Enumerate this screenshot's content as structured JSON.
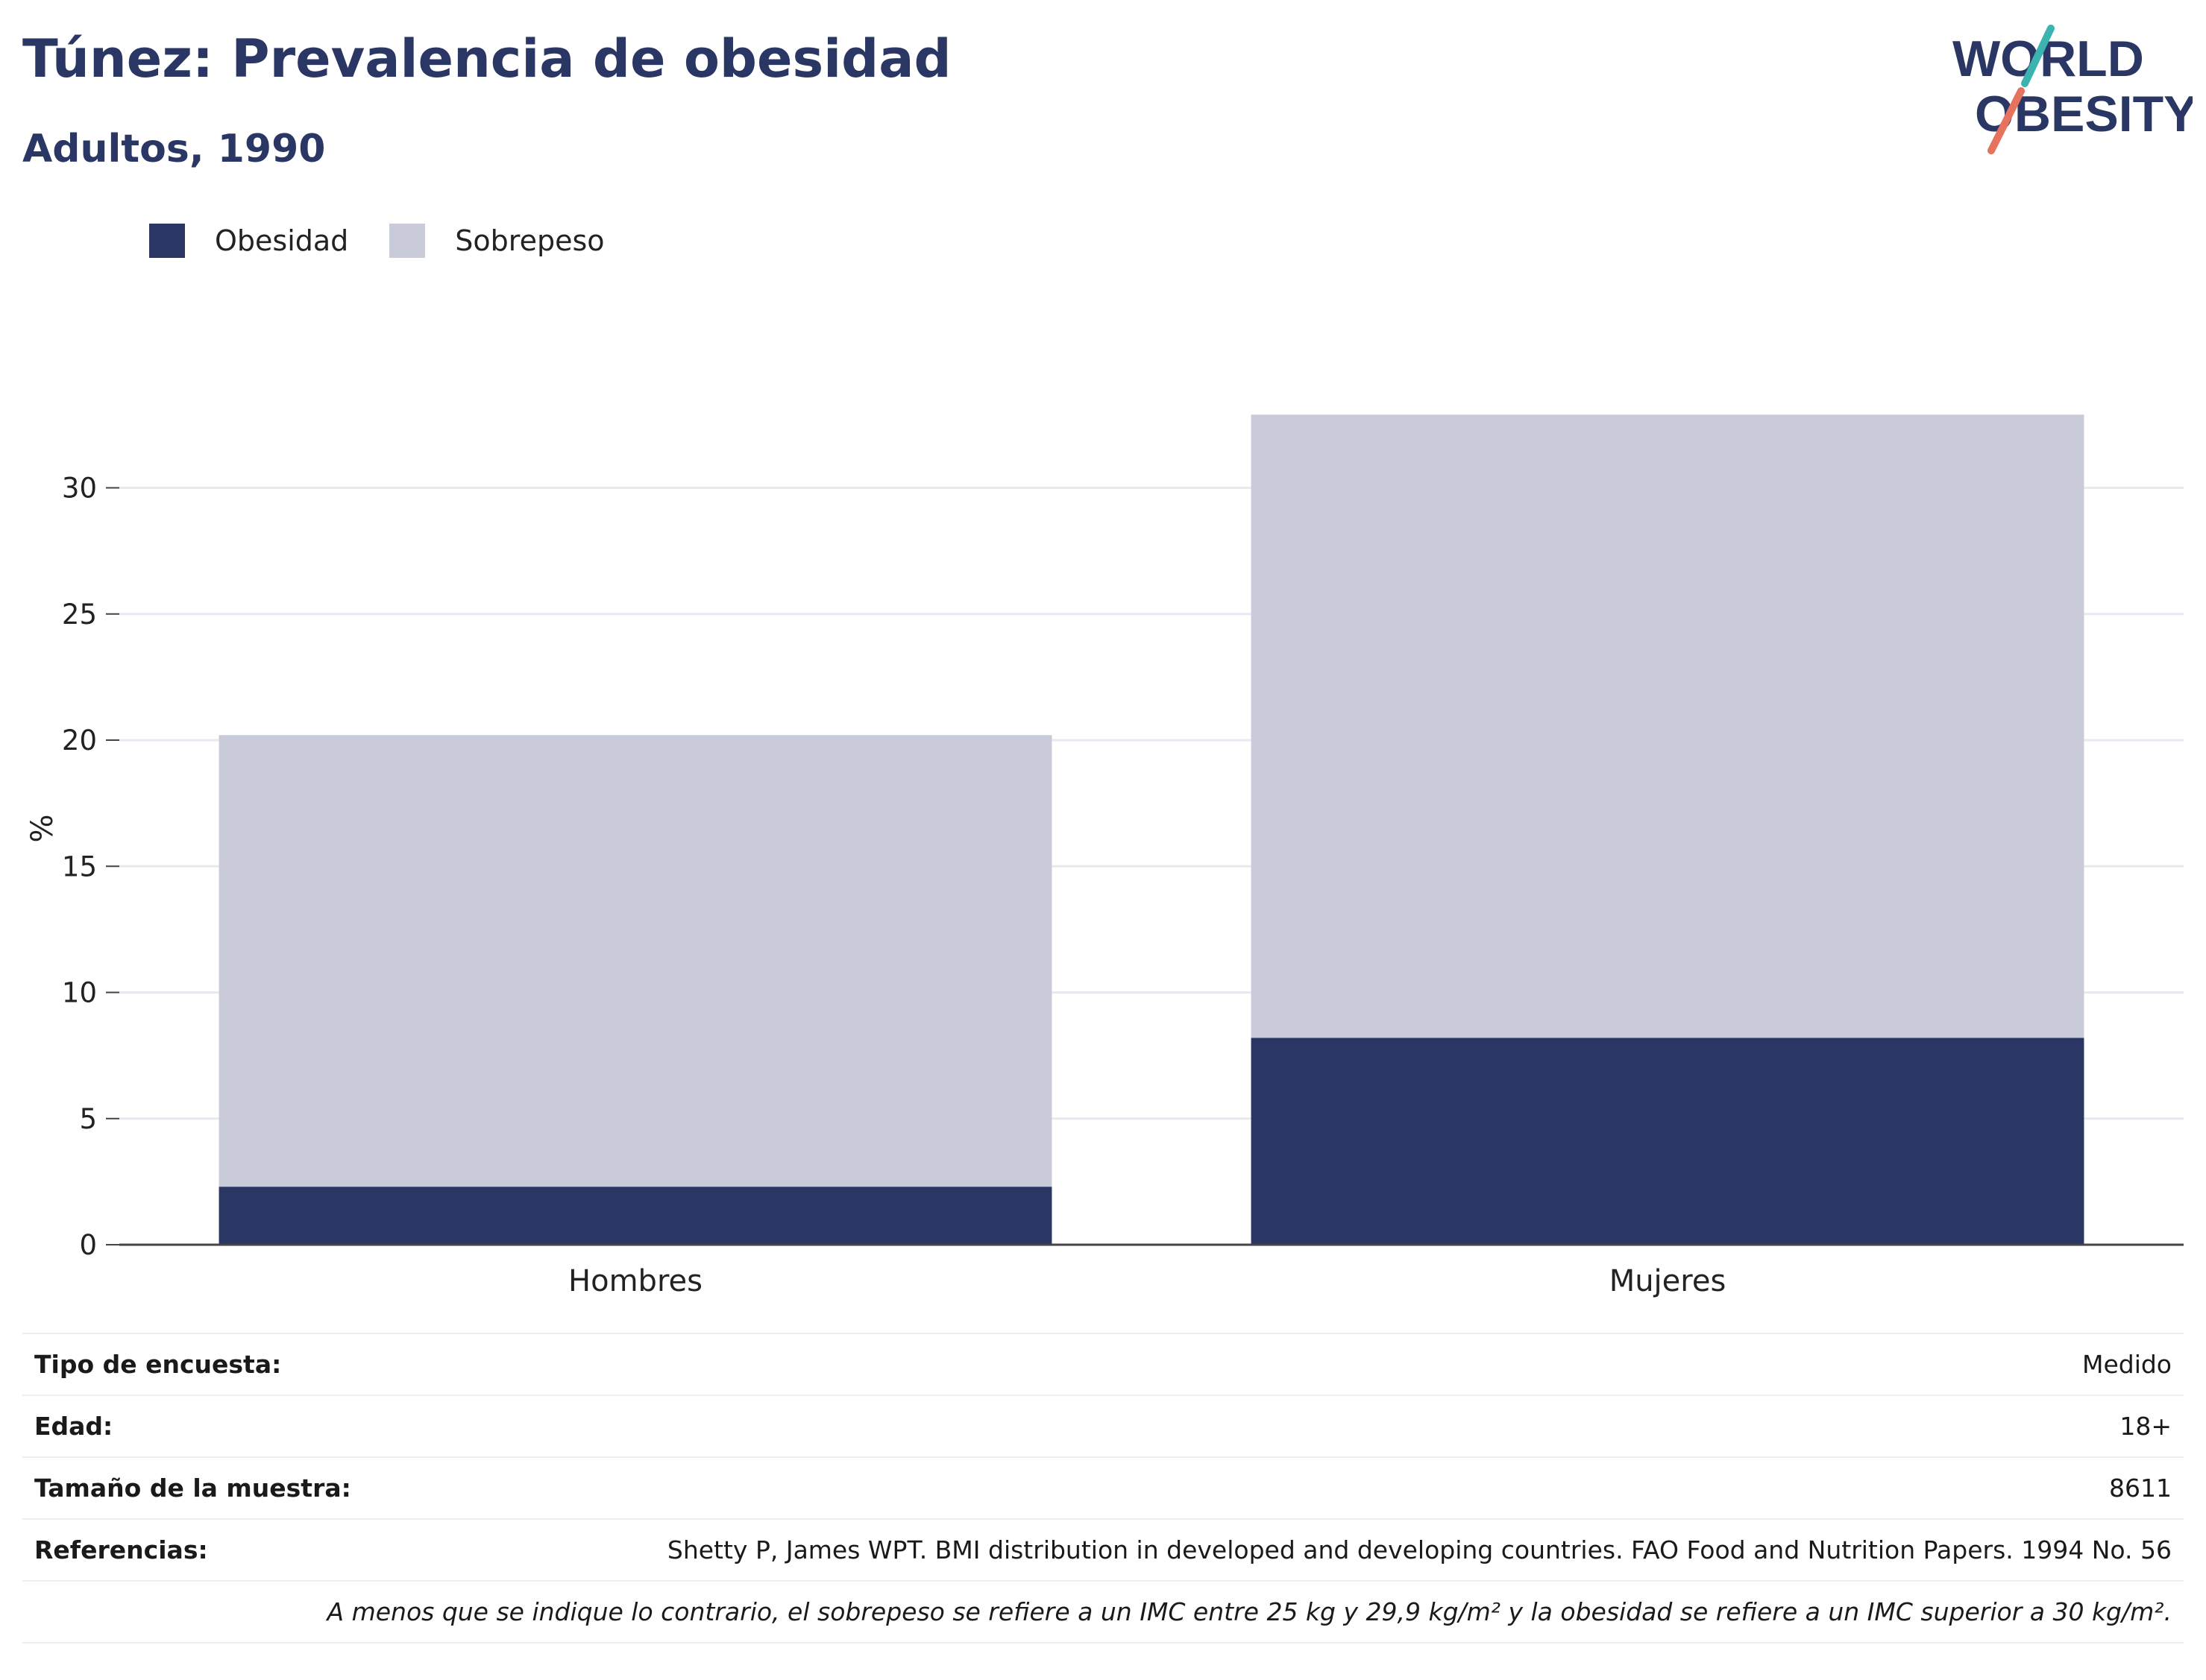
{
  "header": {
    "title": "Túnez: Prevalencia de obesidad",
    "subtitle": "Adultos, 1990"
  },
  "logo": {
    "line1": "WORLD",
    "line2": "OBESITY"
  },
  "colors": {
    "obesity": "#2a3664",
    "overweight": "#c9ccd8",
    "title": "#2a3664",
    "logo_teal": "#3bb3b0",
    "logo_red": "#e6735e"
  },
  "chart_data": {
    "type": "bar",
    "stacked": true,
    "categories": [
      "Hombres",
      "Mujeres"
    ],
    "series": [
      {
        "name": "Obesidad",
        "values": [
          2.3,
          8.2
        ]
      },
      {
        "name": "Sobrepeso",
        "values": [
          17.9,
          24.7
        ]
      }
    ],
    "ylabel": "%",
    "ylim": [
      0,
      33
    ],
    "yticks": [
      0,
      5,
      10,
      15,
      20,
      25,
      30
    ],
    "grid": true,
    "legend_position": "top-left"
  },
  "info": {
    "rows": [
      {
        "key": "Tipo de encuesta:",
        "value": "Medido"
      },
      {
        "key": "Edad:",
        "value": "18+"
      },
      {
        "key": "Tamaño de la muestra:",
        "value": "8611"
      },
      {
        "key": "Referencias:",
        "value": "Shetty P, James WPT. BMI distribution in developed and developing countries. FAO Food and Nutrition Papers. 1994 No. 56"
      }
    ],
    "footnote": "A menos que se indique lo contrario, el sobrepeso se refiere a un IMC entre 25 kg y 29,9 kg/m² y la obesidad se refiere a un IMC superior a 30 kg/m²."
  }
}
